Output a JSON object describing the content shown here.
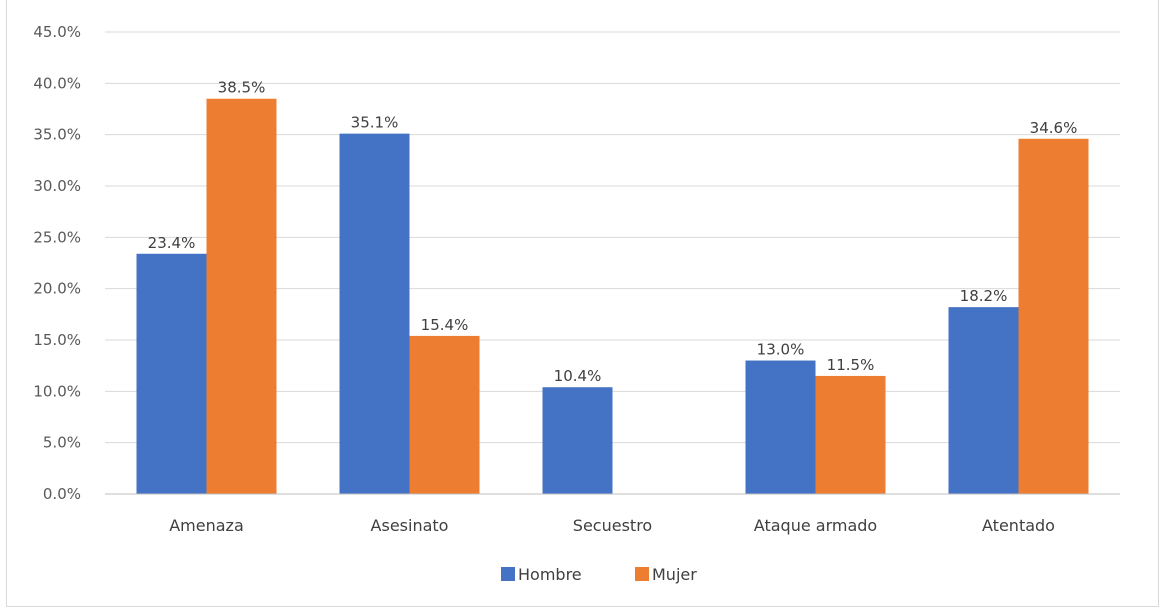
{
  "chart_data": {
    "type": "bar",
    "title": "",
    "categories": [
      "Amenaza",
      "Asesinato",
      "Secuestro",
      "Ataque armado",
      "Atentado"
    ],
    "series": [
      {
        "name": "Hombre",
        "color": "#4472c4",
        "values": [
          23.4,
          35.1,
          10.4,
          13.0,
          18.2
        ],
        "labels": [
          "23.4%",
          "35.1%",
          "10.4%",
          "13.0%",
          "18.2%"
        ]
      },
      {
        "name": "Mujer",
        "color": "#ed7d31",
        "values": [
          38.5,
          15.4,
          null,
          11.5,
          34.6
        ],
        "labels": [
          "38.5%",
          "15.4%",
          "",
          "11.5%",
          "34.6%"
        ]
      }
    ],
    "yticks": [
      "0.0%",
      "5.0%",
      "10.0%",
      "15.0%",
      "20.0%",
      "25.0%",
      "30.0%",
      "35.0%",
      "40.0%",
      "45.0%"
    ],
    "ylim": [
      0,
      45
    ],
    "grid": true,
    "legend": "bottom-center"
  }
}
